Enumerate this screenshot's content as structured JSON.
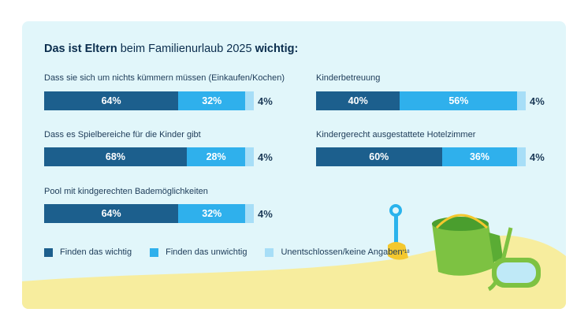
{
  "headline": {
    "part1": "Das ist Eltern",
    "part2": " beim Familienurlaub 2025 ",
    "part3": "wichtig:"
  },
  "chart_data": {
    "type": "bar",
    "orientation": "horizontal-stacked-100",
    "categories": [
      "Dass sie sich um nichts kümmern müssen (Einkaufen/Kochen)",
      "Kinderbetreuung",
      "Dass es Spielbereiche für die Kinder gibt",
      "Kindergerecht ausgestattete Hotelzimmer",
      "Pool mit kindgerechten Bademöglichkeiten"
    ],
    "series": [
      {
        "name": "Finden das wichtig",
        "values": [
          64,
          40,
          68,
          60,
          64
        ],
        "color": "#1c5f8d"
      },
      {
        "name": "Finden das unwichtig",
        "values": [
          32,
          56,
          28,
          36,
          32
        ],
        "color": "#2fb0ec"
      },
      {
        "name": "Unentschlossen/keine Angaben",
        "values": [
          4,
          4,
          4,
          4,
          4
        ],
        "color": "#a7def7"
      }
    ],
    "value_suffix": "%",
    "legend_note": "*18",
    "legend_position": "bottom-left"
  }
}
